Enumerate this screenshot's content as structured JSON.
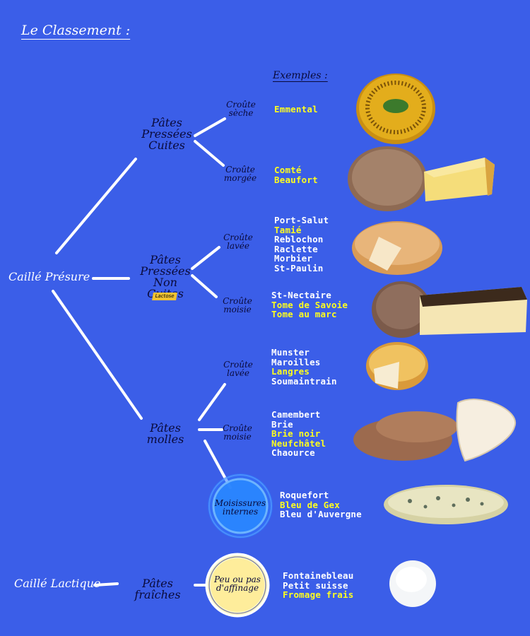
{
  "title": "Le Classement :",
  "examples_header": "Exemples :",
  "roots": {
    "presure": "Caillé Présure",
    "lactique": "Caillé Lactique"
  },
  "families": {
    "cuites": "Pâtes Pressées Cuites",
    "non_cuites": "Pâtes Pressées Non Cuites",
    "lactose_tag": "Lactose",
    "molles": "Pâtes molles",
    "fraiches": "Pâtes fraîches"
  },
  "crusts": {
    "seche": "Croûte sèche",
    "morgee": "Croûte morgée",
    "lavee_1": "Croûte lavée",
    "moisie_1": "Croûte moisie",
    "lavee_2": "Croûte lavée",
    "moisie_2": "Croûte moisie",
    "internes": "Moisissures internes",
    "affinage": "Peu ou pas d'affinage"
  },
  "groups": [
    {
      "id": "seche",
      "items": [
        {
          "name": "Emmental",
          "highlight": true
        }
      ]
    },
    {
      "id": "morgee",
      "items": [
        {
          "name": "Comté",
          "highlight": true
        },
        {
          "name": "Beaufort",
          "highlight": true
        }
      ]
    },
    {
      "id": "lavee_1",
      "items": [
        {
          "name": "Port-Salut",
          "highlight": false
        },
        {
          "name": "Tamié",
          "highlight": true
        },
        {
          "name": "Reblochon",
          "highlight": false
        },
        {
          "name": "Raclette",
          "highlight": false
        },
        {
          "name": "Morbier",
          "highlight": false
        },
        {
          "name": "St-Paulin",
          "highlight": false
        }
      ]
    },
    {
      "id": "moisie_1",
      "items": [
        {
          "name": "St-Nectaire",
          "highlight": false
        },
        {
          "name": "Tome de Savoie",
          "highlight": true
        },
        {
          "name": "Tome au marc",
          "highlight": true
        }
      ]
    },
    {
      "id": "lavee_2",
      "items": [
        {
          "name": "Munster",
          "highlight": false
        },
        {
          "name": "Maroilles",
          "highlight": false
        },
        {
          "name": "Langres",
          "highlight": true
        },
        {
          "name": "Soumaintrain",
          "highlight": false
        }
      ]
    },
    {
      "id": "moisie_2",
      "items": [
        {
          "name": "Camembert",
          "highlight": false
        },
        {
          "name": "Brie",
          "highlight": false
        },
        {
          "name": "Brie noir",
          "highlight": true
        },
        {
          "name": "Neufchâtel",
          "highlight": true
        },
        {
          "name": "Chaource",
          "highlight": false
        }
      ]
    },
    {
      "id": "internes",
      "items": [
        {
          "name": "Roquefort",
          "highlight": false
        },
        {
          "name": "Bleu de Gex",
          "highlight": true
        },
        {
          "name": "Bleu d'Auvergne",
          "highlight": false
        }
      ]
    },
    {
      "id": "affinage",
      "items": [
        {
          "name": "Fontainebleau",
          "highlight": false
        },
        {
          "name": "Petit suisse",
          "highlight": false
        },
        {
          "name": "Fromage frais",
          "highlight": true
        }
      ]
    }
  ],
  "colors": {
    "background": "#3b5ee8",
    "highlight": "#ffff1e",
    "ink": "#0a0a3a"
  }
}
